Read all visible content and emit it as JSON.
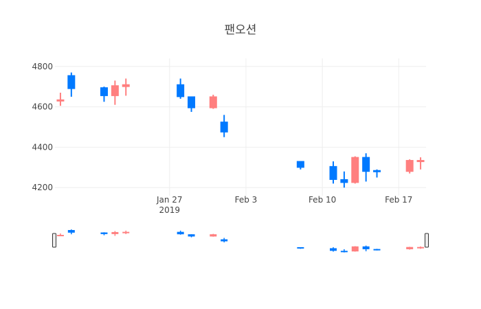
{
  "chart_data": {
    "type": "candlestick",
    "title": "팬오션",
    "xlabel": "",
    "ylabel": "",
    "ylim": [
      4160,
      4840
    ],
    "y_ticks": [
      4200,
      4400,
      4600,
      4800
    ],
    "x_range": [
      "2019-01-17",
      "2019-02-19"
    ],
    "x_ticks": [
      {
        "date": "2019-01-27",
        "label": "Jan 27",
        "sublabel": "2019"
      },
      {
        "date": "2019-02-03",
        "label": "Feb 3",
        "sublabel": ""
      },
      {
        "date": "2019-02-10",
        "label": "Feb 10",
        "sublabel": ""
      },
      {
        "date": "2019-02-17",
        "label": "Feb 17",
        "sublabel": ""
      }
    ],
    "grid": true,
    "legend": "none",
    "rangeslider": true,
    "increasing_color": "#FF7F7F",
    "decreasing_color": "#0079FF",
    "candles": [
      {
        "date": "2019-01-17",
        "open": 4630,
        "high": 4670,
        "low": 4605,
        "close": 4635
      },
      {
        "date": "2019-01-18",
        "open": 4755,
        "high": 4770,
        "low": 4650,
        "close": 4690
      },
      {
        "date": "2019-01-21",
        "open": 4695,
        "high": 4700,
        "low": 4625,
        "close": 4655
      },
      {
        "date": "2019-01-22",
        "open": 4655,
        "high": 4730,
        "low": 4610,
        "close": 4705
      },
      {
        "date": "2019-01-23",
        "open": 4700,
        "high": 4740,
        "low": 4655,
        "close": 4710
      },
      {
        "date": "2019-01-28",
        "open": 4710,
        "high": 4740,
        "low": 4640,
        "close": 4650
      },
      {
        "date": "2019-01-29",
        "open": 4650,
        "high": 4650,
        "low": 4575,
        "close": 4595
      },
      {
        "date": "2019-01-31",
        "open": 4595,
        "high": 4660,
        "low": 4590,
        "close": 4650
      },
      {
        "date": "2019-02-01",
        "open": 4525,
        "high": 4560,
        "low": 4450,
        "close": 4475
      },
      {
        "date": "2019-02-08",
        "open": 4330,
        "high": 4330,
        "low": 4290,
        "close": 4300
      },
      {
        "date": "2019-02-11",
        "open": 4305,
        "high": 4330,
        "low": 4220,
        "close": 4240
      },
      {
        "date": "2019-02-12",
        "open": 4240,
        "high": 4280,
        "low": 4200,
        "close": 4225
      },
      {
        "date": "2019-02-13",
        "open": 4225,
        "high": 4355,
        "low": 4220,
        "close": 4350
      },
      {
        "date": "2019-02-14",
        "open": 4350,
        "high": 4370,
        "low": 4230,
        "close": 4280
      },
      {
        "date": "2019-02-15",
        "open": 4285,
        "high": 4290,
        "low": 4250,
        "close": 4280
      },
      {
        "date": "2019-02-18",
        "open": 4280,
        "high": 4340,
        "low": 4270,
        "close": 4335
      },
      {
        "date": "2019-02-19",
        "open": 4330,
        "high": 4350,
        "low": 4290,
        "close": 4335
      }
    ]
  }
}
